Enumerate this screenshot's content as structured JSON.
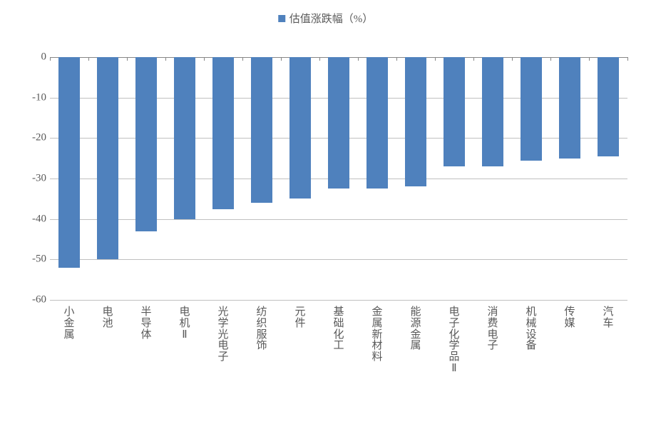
{
  "chart": {
    "type": "bar",
    "legend_label": "估值涨跌幅（%）",
    "categories": [
      "小金属",
      "电池",
      "半导体",
      "电机Ⅱ",
      "光学光电子",
      "纺织服饰",
      "元件",
      "基础化工",
      "金属新材料",
      "能源金属",
      "电子化学品Ⅱ",
      "消费电子",
      "机械设备",
      "传媒",
      "汽车"
    ],
    "values": [
      -52,
      -50,
      -43,
      -40,
      -37.5,
      -36,
      -35,
      -32.5,
      -32.5,
      -32,
      -27,
      -27,
      -25.5,
      -25,
      -24.5
    ],
    "ylim": [
      -60,
      0
    ],
    "ytick_step": 10,
    "yticks": [
      0,
      -10,
      -20,
      -30,
      -40,
      -50,
      -60
    ],
    "bar_color": "#4f81bd",
    "background_color": "#ffffff",
    "grid_color": "#c0c0c0",
    "axis_color": "#868686",
    "text_color": "#595959",
    "font_size_labels": 15,
    "bar_width_ratio": 0.55
  }
}
